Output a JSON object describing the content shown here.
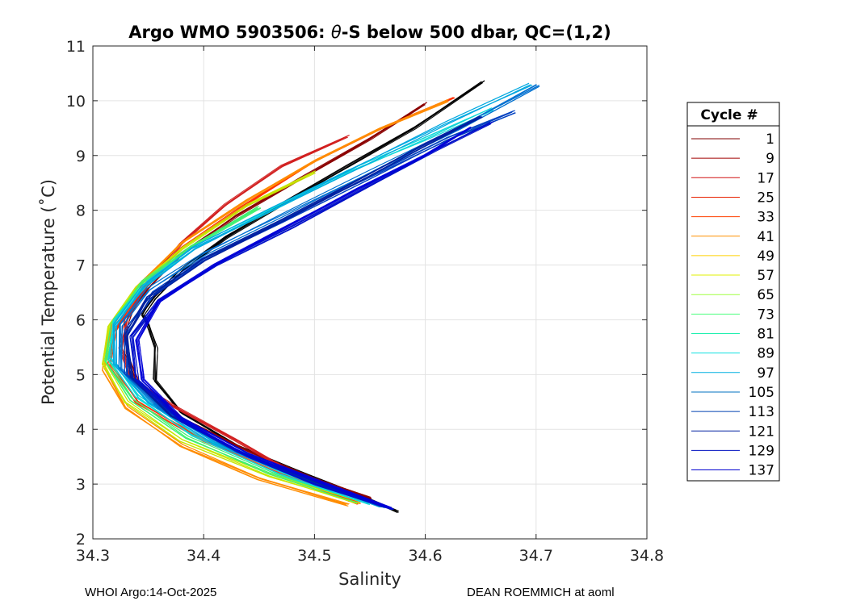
{
  "footer": {
    "left": "WHOI Argo:14-Oct-2025",
    "right": "DEAN ROEMMICH at aoml"
  },
  "chart_data": {
    "type": "line",
    "title_prefix": "Argo WMO 5903506: ",
    "title_symbol": "θ",
    "title_suffix": "-S below 500 dbar,  QC=(1,2)",
    "xlabel": "Salinity",
    "ylabel": "Potential Temperature (˚C)",
    "xlim": [
      34.3,
      34.8
    ],
    "ylim": [
      2,
      11
    ],
    "xticks": [
      34.3,
      34.4,
      34.5,
      34.6,
      34.7,
      34.8
    ],
    "xtick_labels": [
      "34.3",
      "34.4",
      "34.5",
      "34.6",
      "34.7",
      "34.8"
    ],
    "yticks": [
      2,
      3,
      4,
      5,
      6,
      7,
      8,
      9,
      10,
      11
    ],
    "ytick_labels": [
      "2",
      "3",
      "4",
      "5",
      "6",
      "7",
      "8",
      "9",
      "10",
      "11"
    ],
    "grid": true,
    "legend_title": "Cycle #",
    "legend_position": "right-outside",
    "legend": [
      {
        "label": "1",
        "color": "#800000"
      },
      {
        "label": "9",
        "color": "#a00000"
      },
      {
        "label": "17",
        "color": "#d01010"
      },
      {
        "label": "25",
        "color": "#e82000"
      },
      {
        "label": "33",
        "color": "#ff4000"
      },
      {
        "label": "41",
        "color": "#ff9000"
      },
      {
        "label": "49",
        "color": "#ffd000"
      },
      {
        "label": "57",
        "color": "#e0f000"
      },
      {
        "label": "65",
        "color": "#a0ff40"
      },
      {
        "label": "73",
        "color": "#50ff80"
      },
      {
        "label": "81",
        "color": "#20f0b0"
      },
      {
        "label": "89",
        "color": "#10e0e0"
      },
      {
        "label": "97",
        "color": "#00b0e0"
      },
      {
        "label": "105",
        "color": "#0070c0"
      },
      {
        "label": "113",
        "color": "#0040b0"
      },
      {
        "label": "121",
        "color": "#0020a0"
      },
      {
        "label": "129",
        "color": "#0010c0"
      },
      {
        "label": "137",
        "color": "#0000d0"
      }
    ],
    "profile_shape": {
      "deep_end": {
        "salinity": 34.56,
        "theta": 2.6
      },
      "salinity_minimum": {
        "salinity": 34.315,
        "theta": 5.4
      },
      "warm_end": {
        "salinity": 34.65,
        "theta": 10.1
      }
    },
    "series": [
      {
        "name": "1",
        "color": "#000000",
        "salinity": [
          34.575,
          34.54,
          34.49,
          34.43,
          34.38,
          34.356,
          34.357,
          34.35,
          34.345,
          34.355,
          34.38,
          34.42,
          34.47,
          34.53,
          34.59,
          34.652
        ],
        "theta": [
          2.5,
          2.8,
          3.2,
          3.7,
          4.3,
          4.9,
          5.5,
          5.9,
          6.1,
          6.4,
          6.9,
          7.5,
          8.1,
          8.8,
          9.5,
          10.35
        ]
      },
      {
        "name": "9",
        "color": "#8b0000",
        "salinity": [
          34.55,
          34.5,
          34.44,
          34.38,
          34.34,
          34.33,
          34.33,
          34.335,
          34.35,
          34.38,
          34.43,
          34.49,
          34.55,
          34.6
        ],
        "theta": [
          2.75,
          3.1,
          3.6,
          4.2,
          4.9,
          5.4,
          5.9,
          6.2,
          6.6,
          7.2,
          7.9,
          8.6,
          9.3,
          9.95
        ]
      },
      {
        "name": "17",
        "color": "#d22020",
        "salinity": [
          34.53,
          34.48,
          34.43,
          34.375,
          34.335,
          34.325,
          34.33,
          34.35,
          34.38,
          34.42,
          34.47,
          34.53
        ],
        "theta": [
          2.7,
          3.2,
          3.8,
          4.4,
          4.9,
          5.5,
          6.0,
          6.7,
          7.4,
          8.1,
          8.8,
          9.35
        ]
      },
      {
        "name": "25",
        "color": "#ff3000",
        "salinity": [
          34.54,
          34.47,
          34.4,
          34.34,
          34.315,
          34.32,
          34.345,
          34.38,
          34.43,
          34.5,
          34.56,
          34.625
        ],
        "theta": [
          2.65,
          3.2,
          3.8,
          4.5,
          5.2,
          5.8,
          6.6,
          7.3,
          8.0,
          8.9,
          9.5,
          10.05
        ]
      },
      {
        "name": "41",
        "color": "#ff8c00",
        "salinity": [
          34.53,
          34.45,
          34.38,
          34.33,
          34.31,
          34.315,
          34.34,
          34.38,
          34.44,
          34.5,
          34.56,
          34.62
        ],
        "theta": [
          2.62,
          3.1,
          3.7,
          4.4,
          5.1,
          5.8,
          6.6,
          7.4,
          8.2,
          8.9,
          9.5,
          10.0
        ]
      },
      {
        "name": "57",
        "color": "#c8e600",
        "salinity": [
          34.54,
          34.46,
          34.38,
          34.33,
          34.31,
          34.315,
          34.34,
          34.38,
          34.44,
          34.5
        ],
        "theta": [
          2.66,
          3.15,
          3.8,
          4.5,
          5.2,
          5.9,
          6.6,
          7.3,
          8.1,
          8.7
        ]
      },
      {
        "name": "73",
        "color": "#40f070",
        "salinity": [
          34.54,
          34.46,
          34.385,
          34.335,
          34.312,
          34.318,
          34.345,
          34.39,
          34.45
        ],
        "theta": [
          2.68,
          3.2,
          3.85,
          4.55,
          5.25,
          5.95,
          6.7,
          7.35,
          8.05
        ]
      },
      {
        "name": "89",
        "color": "#10d8d8",
        "salinity": [
          34.55,
          34.47,
          34.39,
          34.34,
          34.315,
          34.32,
          34.35,
          34.395,
          34.46,
          34.53,
          34.6,
          34.66
        ],
        "theta": [
          2.64,
          3.2,
          3.9,
          4.6,
          5.3,
          6.0,
          6.7,
          7.35,
          8.0,
          8.7,
          9.3,
          9.85
        ]
      },
      {
        "name": "97",
        "color": "#00a8e0",
        "salinity": [
          34.56,
          34.49,
          34.41,
          34.35,
          34.32,
          34.32,
          34.345,
          34.39,
          34.46,
          34.54,
          34.62,
          34.695
        ],
        "theta": [
          2.6,
          3.1,
          3.75,
          4.5,
          5.2,
          5.9,
          6.6,
          7.3,
          8.0,
          8.8,
          9.6,
          10.3
        ]
      },
      {
        "name": "105",
        "color": "#0070d0",
        "salinity": [
          34.565,
          34.49,
          34.42,
          34.36,
          34.325,
          34.325,
          34.35,
          34.4,
          34.47,
          34.55,
          34.63,
          34.702
        ],
        "theta": [
          2.58,
          3.1,
          3.7,
          4.4,
          5.1,
          5.9,
          6.55,
          7.2,
          7.9,
          8.7,
          9.5,
          10.28
        ]
      },
      {
        "name": "113",
        "color": "#0040c0",
        "salinity": [
          34.56,
          34.5,
          34.43,
          34.37,
          34.33,
          34.33,
          34.355,
          34.4,
          34.47,
          34.55,
          34.62,
          34.68
        ],
        "theta": [
          2.6,
          3.05,
          3.6,
          4.3,
          5.0,
          5.8,
          6.5,
          7.1,
          7.8,
          8.6,
          9.3,
          9.8
        ]
      },
      {
        "name": "121",
        "color": "#0020a0",
        "salinity": [
          34.57,
          34.5,
          34.43,
          34.37,
          34.335,
          34.33,
          34.35,
          34.4,
          34.47,
          34.54,
          34.6,
          34.65
        ],
        "theta": [
          2.55,
          3.05,
          3.6,
          4.25,
          4.95,
          5.7,
          6.4,
          7.1,
          7.8,
          8.55,
          9.2,
          9.7
        ]
      },
      {
        "name": "129",
        "color": "#0010c8",
        "salinity": [
          34.565,
          34.5,
          34.44,
          34.38,
          34.34,
          34.335,
          34.36,
          34.41,
          34.48,
          34.55,
          34.61,
          34.66
        ],
        "theta": [
          2.58,
          3.0,
          3.5,
          4.15,
          4.9,
          5.7,
          6.35,
          7.0,
          7.7,
          8.45,
          9.1,
          9.6
        ]
      },
      {
        "name": "137",
        "color": "#0000d8",
        "salinity": [
          34.57,
          34.51,
          34.44,
          34.38,
          34.345,
          34.34,
          34.36,
          34.41,
          34.47,
          34.54,
          34.6,
          34.64
        ],
        "theta": [
          2.55,
          3.0,
          3.55,
          4.2,
          4.9,
          5.65,
          6.35,
          7.0,
          7.65,
          8.4,
          9.0,
          9.5
        ]
      }
    ]
  }
}
